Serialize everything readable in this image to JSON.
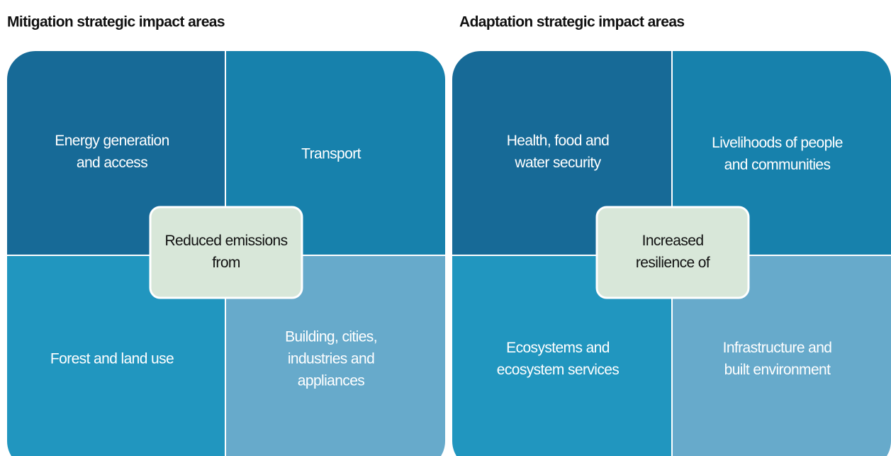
{
  "panels": [
    {
      "title": "Mitigation strategic impact areas",
      "center": [
        "Reduced emissions",
        "from"
      ],
      "quadrants": [
        [
          "Energy generation",
          "and access"
        ],
        [
          "Transport"
        ],
        [
          "Forest and land use"
        ],
        [
          "Building, cities,",
          "industries and",
          "appliances"
        ]
      ]
    },
    {
      "title": "Adaptation strategic impact areas",
      "center": [
        "Increased",
        "resilience of"
      ],
      "quadrants": [
        [
          "Health, food and",
          "water security"
        ],
        [
          "Livelihoods of people",
          "and communities"
        ],
        [
          "Ecosystems and",
          "ecosystem services"
        ],
        [
          "Infrastructure and",
          "built environment"
        ]
      ]
    }
  ]
}
